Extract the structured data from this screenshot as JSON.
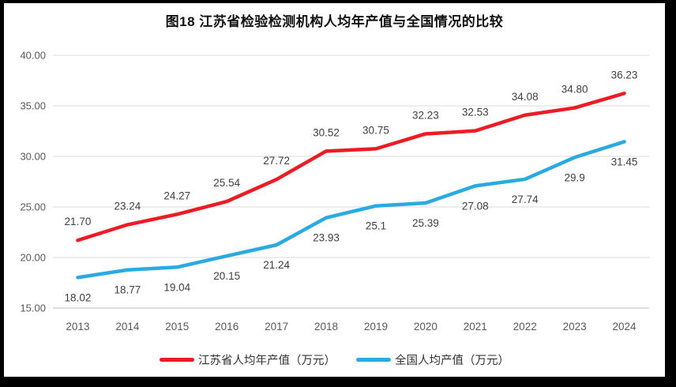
{
  "chart_data": {
    "type": "line",
    "title": "图18  江苏省检验检测机构人均年产值与全国情况的比较",
    "categories": [
      "2013",
      "2014",
      "2015",
      "2016",
      "2017",
      "2018",
      "2019",
      "2020",
      "2021",
      "2022",
      "2023",
      "2024"
    ],
    "series": [
      {
        "name": "江苏省人均年产值（万元）",
        "color": "#ec1c24",
        "values": [
          21.7,
          23.24,
          24.27,
          25.54,
          27.72,
          30.52,
          30.75,
          32.23,
          32.53,
          34.08,
          34.8,
          36.23
        ],
        "labels": [
          "21.70",
          "23.24",
          "24.27",
          "25.54",
          "27.72",
          "30.52",
          "30.75",
          "32.23",
          "32.53",
          "34.08",
          "34.80",
          "36.23"
        ],
        "label_position": "above"
      },
      {
        "name": "全国人均产值（万元）",
        "color": "#29abe2",
        "values": [
          18.02,
          18.77,
          19.04,
          20.15,
          21.24,
          23.93,
          25.1,
          25.39,
          27.08,
          27.74,
          29.9,
          31.45
        ],
        "labels": [
          "18.02",
          "18.77",
          "19.04",
          "20.15",
          "21.24",
          "23.93",
          "25.1",
          "25.39",
          "27.08",
          "27.74",
          "29.9",
          "31.45"
        ],
        "label_position": "below"
      }
    ],
    "y_axis": {
      "min": 15,
      "max": 40,
      "step": 5,
      "tick_labels": [
        "15.00",
        "20.00",
        "25.00",
        "30.00",
        "35.00",
        "40.00"
      ]
    },
    "grid": true,
    "legend_position": "bottom",
    "colors": {
      "gridline": "#d9d9d9",
      "axis_line": "#bfbfbf",
      "tick_label": "#595959",
      "data_label": "#3f3f3f"
    }
  }
}
